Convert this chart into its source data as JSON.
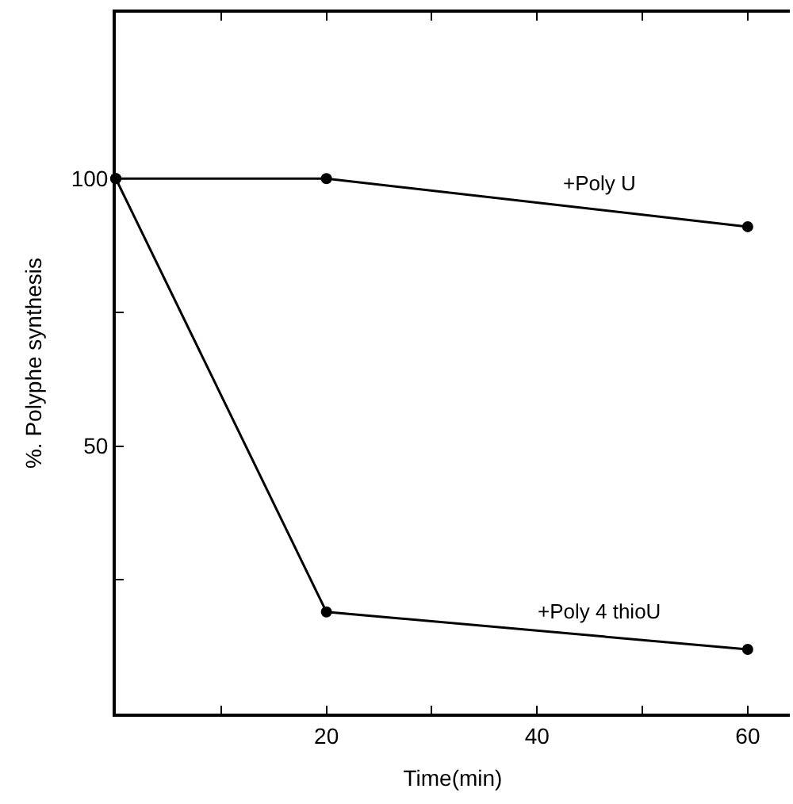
{
  "chart_data": {
    "type": "line",
    "xlabel": "Time(min)",
    "ylabel": "%. Polyphe synthesis",
    "series": [
      {
        "name": "+Poly U",
        "color": "#000000",
        "x": [
          0,
          20,
          60
        ],
        "values": [
          100,
          100,
          91
        ]
      },
      {
        "name": "+Poly 4 thioU",
        "color": "#000000",
        "x": [
          0,
          20,
          60
        ],
        "values": [
          100,
          19,
          12
        ]
      }
    ],
    "xlim": [
      0,
      64
    ],
    "ylim": [
      0,
      131
    ],
    "xticks": [
      {
        "value": 10,
        "label": null
      },
      20,
      {
        "value": 30,
        "label": null
      },
      40,
      {
        "value": 50,
        "label": null
      },
      60
    ],
    "yticks": [
      {
        "value": 25,
        "label": null
      },
      50,
      {
        "value": 75,
        "label": null
      },
      100
    ],
    "marker": "circle",
    "line_style": "solid",
    "legend": false
  }
}
